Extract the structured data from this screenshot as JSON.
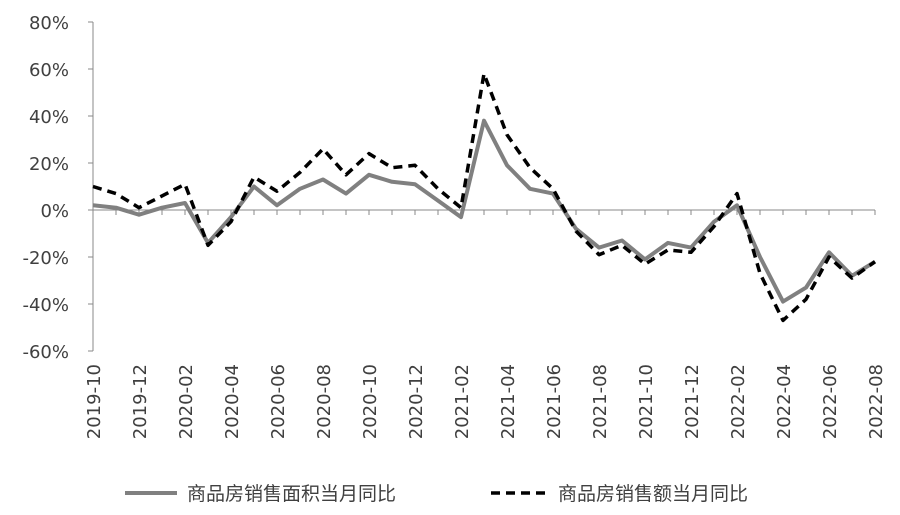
{
  "chart_data": {
    "type": "line",
    "title": "",
    "xlabel": "",
    "ylabel": "",
    "ylim": [
      -60,
      80
    ],
    "yticks": [
      "80%",
      "60%",
      "40%",
      "20%",
      "0%",
      "-20%",
      "-40%",
      "-60%"
    ],
    "y_tick_values": [
      80,
      60,
      40,
      20,
      0,
      -20,
      -40,
      -60
    ],
    "x": [
      "2019-10",
      "2019-11",
      "2019-12",
      "2020-01",
      "2020-02",
      "2020-03",
      "2020-04",
      "2020-05",
      "2020-06",
      "2020-07",
      "2020-08",
      "2020-09",
      "2020-10",
      "2020-11",
      "2020-12",
      "2021-01",
      "2021-02",
      "2021-03",
      "2021-04",
      "2021-05",
      "2021-06",
      "2021-07",
      "2021-08",
      "2021-09",
      "2021-10",
      "2021-11",
      "2021-12",
      "2022-01",
      "2022-02",
      "2022-03",
      "2022-04",
      "2022-05",
      "2022-06",
      "2022-07",
      "2022-08"
    ],
    "x_tick_labels": [
      "2019-10",
      "2019-12",
      "2020-02",
      "2020-04",
      "2020-06",
      "2020-08",
      "2020-10",
      "2020-12",
      "2021-02",
      "2021-04",
      "2021-06",
      "2021-08",
      "2021-10",
      "2021-12",
      "2022-02",
      "2022-04",
      "2022-06",
      "2022-08"
    ],
    "grid": false,
    "legend_position": "bottom",
    "series": [
      {
        "name": "商品房销售面积当月同比",
        "color": "#808080",
        "style": "solid",
        "values": [
          2,
          1,
          -2,
          1,
          3,
          -14,
          -3,
          10,
          2,
          9,
          13,
          7,
          15,
          12,
          11,
          4,
          -3,
          38,
          19,
          9,
          7,
          -8,
          -16,
          -13,
          -21,
          -14,
          -16,
          -5,
          2,
          -20,
          -39,
          -33,
          -18,
          -28,
          -22
        ]
      },
      {
        "name": "商品房销售额当月同比",
        "color": "#000000",
        "style": "dashed",
        "values": [
          10,
          7,
          1,
          6,
          11,
          -15,
          -5,
          14,
          8,
          16,
          26,
          15,
          24,
          18,
          19,
          9,
          1,
          58,
          32,
          18,
          9,
          -9,
          -19,
          -15,
          -23,
          -17,
          -18,
          -7,
          7,
          -27,
          -47,
          -38,
          -20,
          -29,
          -22
        ]
      }
    ]
  }
}
